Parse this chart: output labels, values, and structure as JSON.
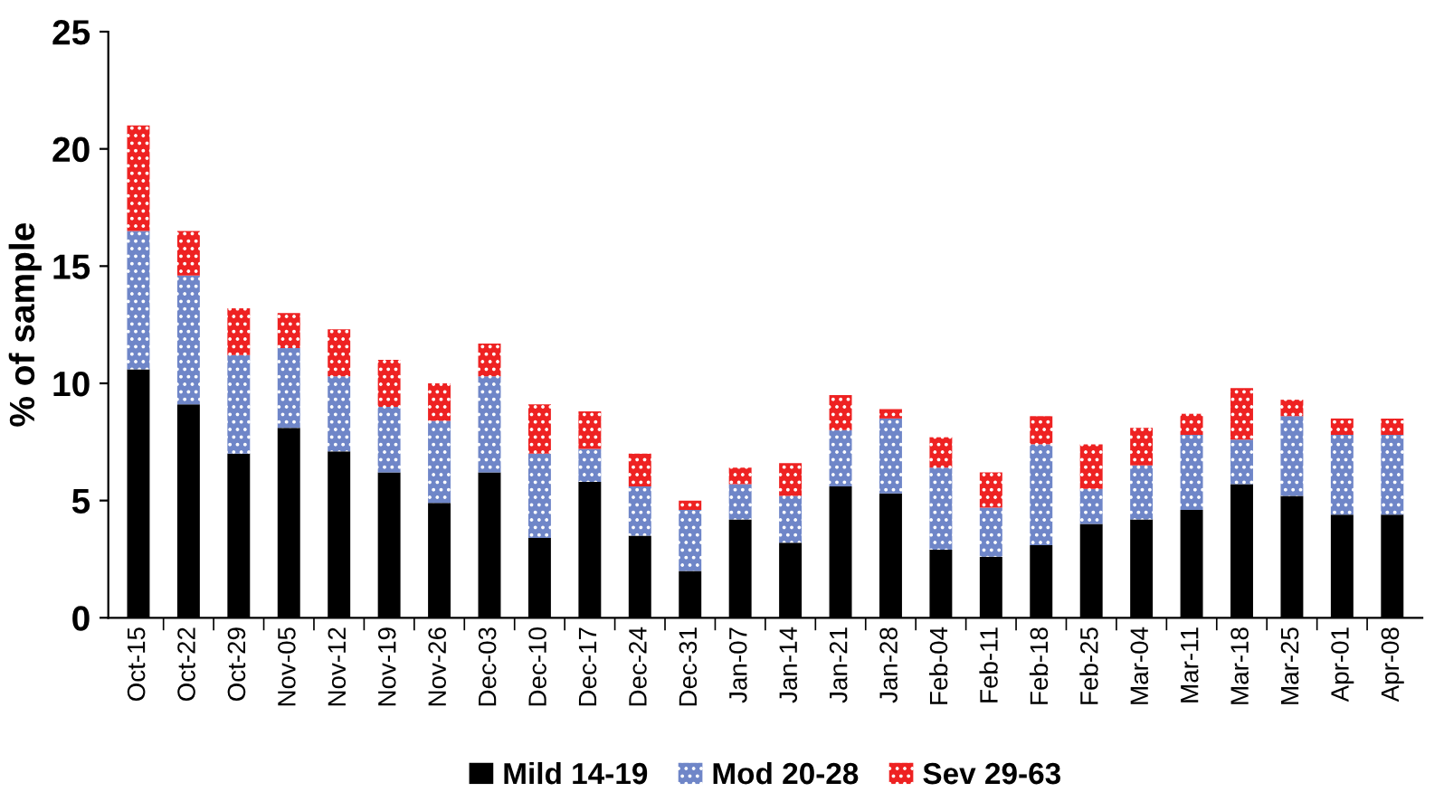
{
  "chart_data": {
    "type": "bar",
    "stacked": true,
    "ylabel": "% of sample",
    "categories": [
      "Oct-15",
      "Oct-22",
      "Oct-29",
      "Nov-05",
      "Nov-12",
      "Nov-19",
      "Nov-26",
      "Dec-03",
      "Dec-10",
      "Dec-17",
      "Dec-24",
      "Dec-31",
      "Jan-07",
      "Jan-14",
      "Jan-21",
      "Jan-28",
      "Feb-04",
      "Feb-11",
      "Feb-18",
      "Feb-25",
      "Mar-04",
      "Mar-11",
      "Mar-18",
      "Mar-25",
      "Apr-01",
      "Apr-08"
    ],
    "series": [
      {
        "name": "Mild 14-19",
        "color": "#000000",
        "values": [
          10.6,
          9.1,
          7.0,
          8.1,
          7.1,
          6.2,
          4.9,
          6.2,
          3.4,
          5.8,
          3.5,
          2.0,
          4.2,
          3.2,
          5.6,
          5.3,
          2.9,
          2.6,
          3.1,
          4.0,
          4.2,
          4.6,
          5.7,
          5.2,
          4.4,
          4.4
        ]
      },
      {
        "name": "Mod 20-28",
        "color": "#6f86c8",
        "values": [
          5.9,
          5.5,
          4.2,
          3.4,
          3.2,
          2.8,
          3.5,
          4.1,
          3.6,
          1.4,
          2.1,
          2.6,
          1.5,
          2.0,
          2.4,
          3.2,
          3.5,
          2.1,
          4.3,
          1.5,
          2.3,
          3.2,
          1.9,
          3.4,
          3.4,
          3.4
        ]
      },
      {
        "name": "Sev 29-63",
        "color": "#ee2222",
        "values": [
          4.5,
          1.9,
          2.0,
          1.5,
          2.0,
          2.0,
          1.6,
          1.4,
          2.1,
          1.6,
          1.4,
          0.4,
          0.7,
          1.4,
          1.5,
          0.4,
          1.3,
          1.5,
          1.2,
          1.9,
          1.6,
          0.9,
          2.2,
          0.7,
          0.7,
          0.7
        ]
      }
    ],
    "ylim": [
      0,
      25
    ],
    "yticks": [
      0,
      5,
      10,
      15,
      20,
      25
    ],
    "grid": false,
    "legend": "bottom"
  }
}
